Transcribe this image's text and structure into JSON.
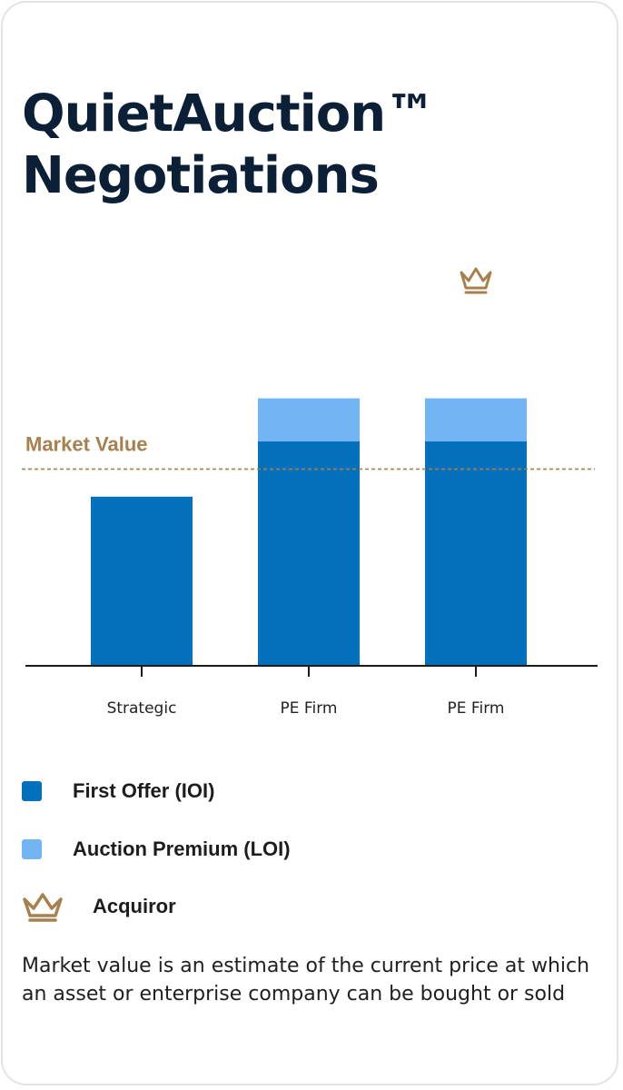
{
  "title": {
    "line1": "QuietAuction™",
    "line2": "Negotiations"
  },
  "colors": {
    "first_offer": "#0270bb",
    "auction_premium": "#73b4f5",
    "market_value": "#a8804e",
    "title": "#0b1f36"
  },
  "chart_data": {
    "type": "bar",
    "stacked": true,
    "categories": [
      "Strategic",
      "PE Firm",
      "PE Firm"
    ],
    "series": [
      {
        "name": "First Offer (IOI)",
        "values": [
          49,
          65,
          65
        ]
      },
      {
        "name": "Auction Premium (LOI)",
        "values": [
          0,
          12.5,
          12.5
        ]
      }
    ],
    "reference_line": {
      "label": "Market Value",
      "value": 57
    },
    "acquiror_index": 2,
    "ylim": [
      0,
      100
    ],
    "grid": false,
    "legend_position": "bottom"
  },
  "legend": {
    "first_offer": "First Offer (IOI)",
    "auction_premium": "Auction Premium (LOI)",
    "acquiror": "Acquiror",
    "acquiror_icon": "crown-icon"
  },
  "footnote": "Market value is an estimate of the current price at which an asset or enterprise company can be bought or sold"
}
